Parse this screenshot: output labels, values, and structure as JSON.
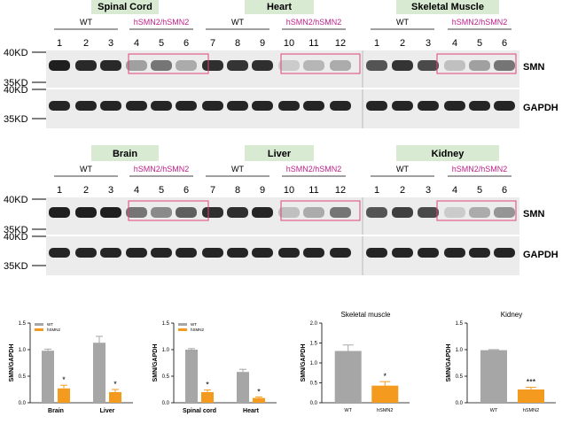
{
  "colors": {
    "tissue_label_bg": "#d9ead3",
    "mutant_label": "#c0208a",
    "highlight_box": "#e0457a",
    "wt_bar": "#a6a6a6",
    "mutant_bar": "#f39a1f",
    "blot_bg": "#ececec",
    "band": "#141414"
  },
  "panels": [
    {
      "tissues": [
        "Spinal Cord",
        "Heart",
        "Skeletal Muscle"
      ],
      "group_wt": "WT",
      "group_mut": "hSMN2/hSMN2",
      "lanes": [
        "1",
        "2",
        "3",
        "4",
        "5",
        "6",
        "7",
        "8",
        "9",
        "10",
        "11",
        "12",
        "1",
        "2",
        "3",
        "4",
        "5",
        "6"
      ],
      "markers_top": [
        "40KD",
        "35KD"
      ],
      "markers_bottom": [
        "40KD",
        "35KD"
      ],
      "protein_top": "SMN",
      "protein_bottom": "GAPDH"
    },
    {
      "tissues": [
        "Brain",
        "Liver",
        "Kidney"
      ],
      "group_wt": "WT",
      "group_mut": "hSMN2/hSMN2",
      "lanes": [
        "1",
        "2",
        "3",
        "4",
        "5",
        "6",
        "7",
        "8",
        "9",
        "10",
        "11",
        "12",
        "1",
        "2",
        "3",
        "4",
        "5",
        "6"
      ],
      "markers_top": [
        "40KD",
        "35KD"
      ],
      "markers_bottom": [
        "40KD",
        "35KD"
      ],
      "protein_top": "SMN",
      "protein_bottom": "GAPDH"
    }
  ],
  "chart_data": [
    {
      "type": "bar",
      "title": "",
      "ylabel": "SMN/GAPDH",
      "ylim": [
        0,
        1.5
      ],
      "yticks": [
        "0.0",
        "0.5",
        "1.0",
        "1.5"
      ],
      "categories": [
        "Brain",
        "Liver"
      ],
      "legend": [
        "WT",
        "hSMN2"
      ],
      "series": [
        {
          "name": "WT",
          "values": [
            0.98,
            1.13
          ],
          "errors": [
            0.03,
            0.12
          ]
        },
        {
          "name": "hSMN2",
          "values": [
            0.27,
            0.2
          ],
          "errors": [
            0.06,
            0.05
          ]
        }
      ],
      "annotations": [
        "*",
        "*"
      ]
    },
    {
      "type": "bar",
      "title": "",
      "ylabel": "SMN/GAPDH",
      "ylim": [
        0,
        1.5
      ],
      "yticks": [
        "0.0",
        "0.5",
        "1.0",
        "1.5"
      ],
      "categories": [
        "Spinal cord",
        "Heart"
      ],
      "legend": [
        "WT",
        "hSMN2"
      ],
      "series": [
        {
          "name": "WT",
          "values": [
            1.0,
            0.58
          ],
          "errors": [
            0.02,
            0.05
          ]
        },
        {
          "name": "hSMN2",
          "values": [
            0.2,
            0.09
          ],
          "errors": [
            0.04,
            0.02
          ]
        }
      ],
      "annotations": [
        "*",
        "*"
      ]
    },
    {
      "type": "bar",
      "title": "Skeletal muscle",
      "ylabel": "SMN/GAPDH",
      "ylim": [
        0,
        2.0
      ],
      "yticks": [
        "0.0",
        "0.5",
        "1.0",
        "1.5",
        "2.0"
      ],
      "categories": [
        "WT",
        "hSMN2"
      ],
      "series": [
        {
          "name": "",
          "values": [
            1.3,
            0.43
          ],
          "errors": [
            0.15,
            0.1
          ]
        }
      ],
      "annotations": [
        "",
        "*"
      ]
    },
    {
      "type": "bar",
      "title": "Kidney",
      "ylabel": "SMN/GAPDH",
      "ylim": [
        0,
        1.5
      ],
      "yticks": [
        "0.0",
        "0.5",
        "1.0",
        "1.5"
      ],
      "categories": [
        "WT",
        "hSMN2"
      ],
      "series": [
        {
          "name": "",
          "values": [
            0.99,
            0.25
          ],
          "errors": [
            0.01,
            0.04
          ]
        }
      ],
      "annotations": [
        "",
        "***"
      ]
    }
  ]
}
